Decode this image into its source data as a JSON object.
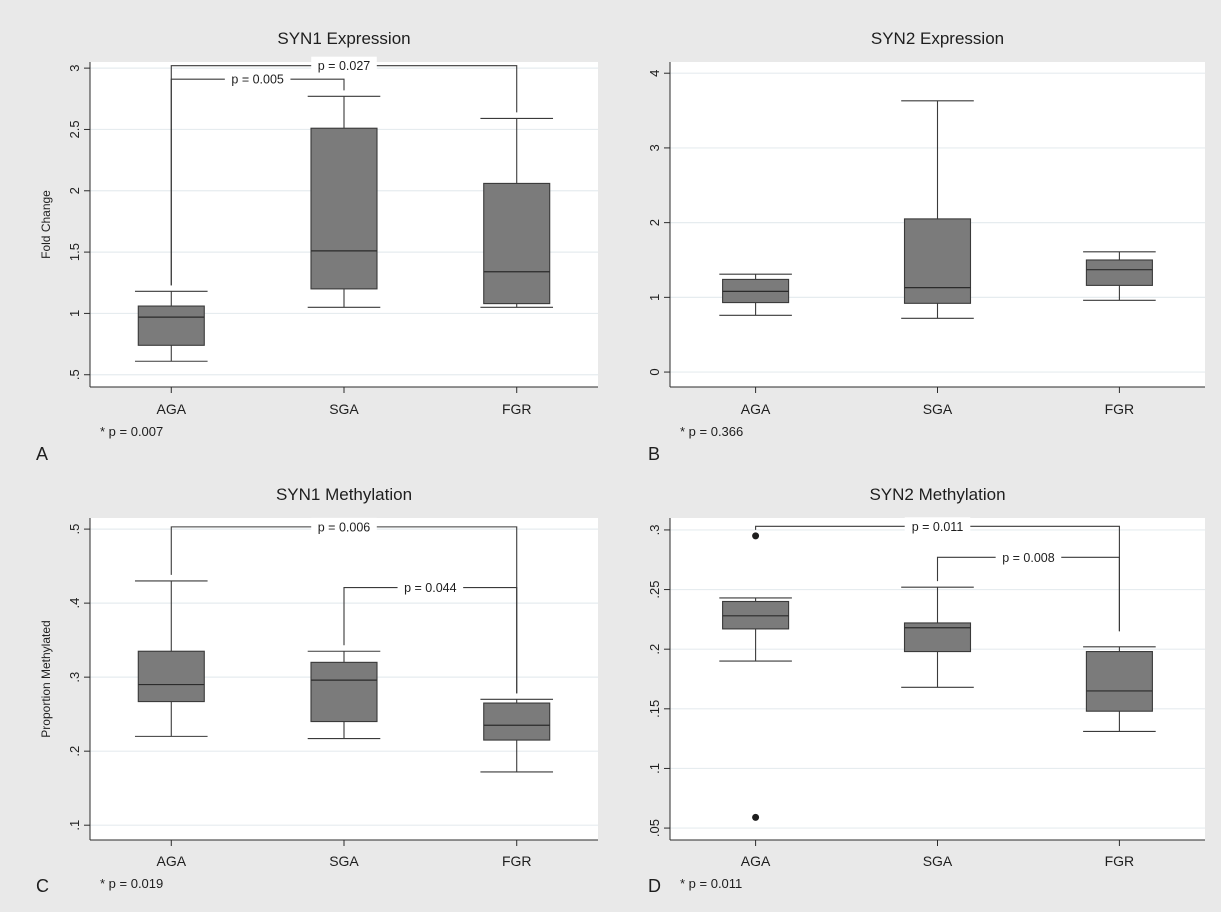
{
  "panels": [
    {
      "letter": "A",
      "title": "SYN1 Expression",
      "ylabel": "Fold Change",
      "footnote": "* p = 0.007",
      "chart_data": {
        "type": "box",
        "title": "SYN1 Expression",
        "ylabel": "Fold Change",
        "categories": [
          "AGA",
          "SGA",
          "FGR"
        ],
        "yticks": [
          ".5",
          "1",
          "1.5",
          "2",
          "2.5",
          "3"
        ],
        "ytick_values": [
          0.5,
          1,
          1.5,
          2,
          2.5,
          3
        ],
        "ylim": [
          0.4,
          3.05
        ],
        "grid": true,
        "boxes": [
          {
            "category": "AGA",
            "min": 0.61,
            "q1": 0.74,
            "median": 0.97,
            "q3": 1.06,
            "max": 1.18,
            "outliers": []
          },
          {
            "category": "SGA",
            "min": 1.05,
            "q1": 1.2,
            "median": 1.51,
            "q3": 2.51,
            "max": 2.77,
            "outliers": []
          },
          {
            "category": "FGR",
            "min": 1.05,
            "q1": 1.08,
            "median": 1.34,
            "q3": 2.06,
            "max": 2.59,
            "outliers": []
          }
        ],
        "brackets": [
          {
            "from": "AGA",
            "to": "FGR",
            "label": "p = 0.027",
            "y": 3.02,
            "from_end": 1.18,
            "to_end": 2.59
          },
          {
            "from": "AGA",
            "to": "SGA",
            "label": "p = 0.005",
            "y": 2.91,
            "from_end": 1.18,
            "to_end": 2.77
          }
        ]
      }
    },
    {
      "letter": "B",
      "title": "SYN2 Expression",
      "ylabel": "",
      "footnote": "* p = 0.366",
      "chart_data": {
        "type": "box",
        "title": "SYN2 Expression",
        "ylabel": "",
        "categories": [
          "AGA",
          "SGA",
          "FGR"
        ],
        "yticks": [
          "0",
          "1",
          "2",
          "3",
          "4"
        ],
        "ytick_values": [
          0,
          1,
          2,
          3,
          4
        ],
        "ylim": [
          -0.2,
          4.15
        ],
        "grid": true,
        "boxes": [
          {
            "category": "AGA",
            "min": 0.76,
            "q1": 0.93,
            "median": 1.08,
            "q3": 1.24,
            "max": 1.31,
            "outliers": []
          },
          {
            "category": "SGA",
            "min": 0.72,
            "q1": 0.92,
            "median": 1.13,
            "q3": 2.05,
            "max": 3.63,
            "outliers": []
          },
          {
            "category": "FGR",
            "min": 0.96,
            "q1": 1.16,
            "median": 1.37,
            "q3": 1.5,
            "max": 1.61,
            "outliers": []
          }
        ],
        "brackets": []
      }
    },
    {
      "letter": "C",
      "title": "SYN1 Methylation",
      "ylabel": "Proportion Methylated",
      "footnote": "* p = 0.019",
      "chart_data": {
        "type": "box",
        "title": "SYN1 Methylation",
        "ylabel": "Proportion Methylated",
        "categories": [
          "AGA",
          "SGA",
          "FGR"
        ],
        "yticks": [
          ".1",
          ".2",
          ".3",
          ".4",
          ".5"
        ],
        "ytick_values": [
          0.1,
          0.2,
          0.3,
          0.4,
          0.5
        ],
        "ylim": [
          0.08,
          0.515
        ],
        "grid": true,
        "boxes": [
          {
            "category": "AGA",
            "min": 0.22,
            "q1": 0.267,
            "median": 0.29,
            "q3": 0.335,
            "max": 0.43,
            "outliers": []
          },
          {
            "category": "SGA",
            "min": 0.217,
            "q1": 0.24,
            "median": 0.296,
            "q3": 0.32,
            "max": 0.335,
            "outliers": []
          },
          {
            "category": "FGR",
            "min": 0.172,
            "q1": 0.215,
            "median": 0.235,
            "q3": 0.265,
            "max": 0.27,
            "outliers": []
          }
        ],
        "brackets": [
          {
            "from": "AGA",
            "to": "FGR",
            "label": "p = 0.006",
            "y": 0.503,
            "from_end": 0.43,
            "to_end": 0.27
          },
          {
            "from": "SGA",
            "to": "FGR",
            "label": "p = 0.044",
            "y": 0.421,
            "from_end": 0.335,
            "to_end": 0.27
          }
        ]
      }
    },
    {
      "letter": "D",
      "title": "SYN2 Methylation",
      "ylabel": "",
      "footnote": "* p = 0.011",
      "chart_data": {
        "type": "box",
        "title": "SYN2 Methylation",
        "ylabel": "",
        "categories": [
          "AGA",
          "SGA",
          "FGR"
        ],
        "yticks": [
          ".05",
          ".1",
          ".15",
          ".2",
          ".25",
          ".3"
        ],
        "ytick_values": [
          0.05,
          0.1,
          0.15,
          0.2,
          0.25,
          0.3
        ],
        "ylim": [
          0.04,
          0.31
        ],
        "grid": true,
        "boxes": [
          {
            "category": "AGA",
            "min": 0.19,
            "q1": 0.217,
            "median": 0.228,
            "q3": 0.24,
            "max": 0.243,
            "outliers": [
              0.295,
              0.059
            ]
          },
          {
            "category": "SGA",
            "min": 0.168,
            "q1": 0.198,
            "median": 0.218,
            "q3": 0.222,
            "max": 0.252,
            "outliers": []
          },
          {
            "category": "FGR",
            "min": 0.131,
            "q1": 0.148,
            "median": 0.165,
            "q3": 0.198,
            "max": 0.202,
            "outliers": []
          }
        ],
        "brackets": [
          {
            "from": "AGA",
            "to": "FGR",
            "label": "p = 0.011",
            "y": 0.303,
            "from_end": 0.295,
            "to_end": 0.21
          },
          {
            "from": "SGA",
            "to": "FGR",
            "label": "p = 0.008",
            "y": 0.277,
            "from_end": 0.252,
            "to_end": 0.21
          }
        ]
      }
    }
  ]
}
